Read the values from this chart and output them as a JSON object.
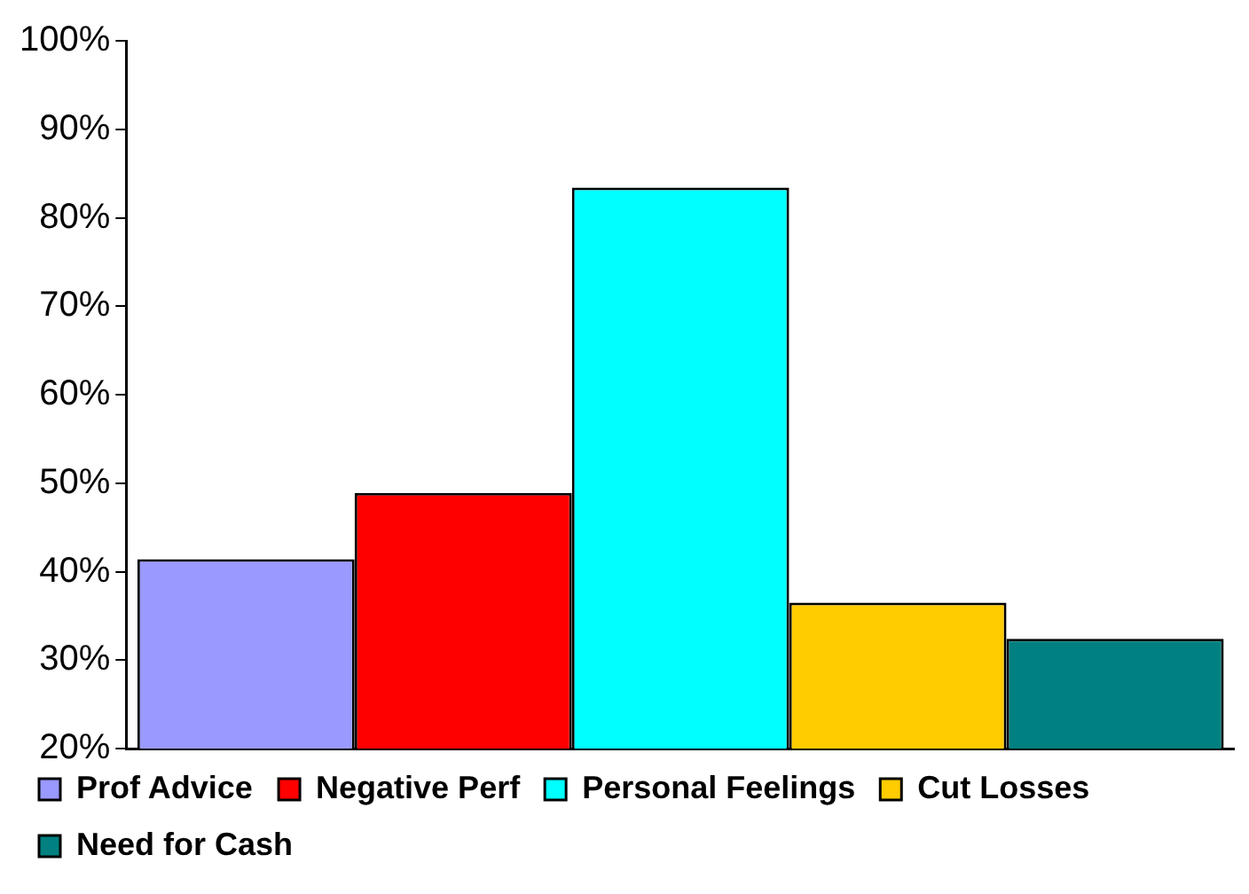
{
  "chart_data": {
    "type": "bar",
    "categories": [
      null
    ],
    "series": [
      {
        "name": "Prof Advice",
        "color": "#9999ff",
        "values": [
          41.4
        ]
      },
      {
        "name": "Negative Perf",
        "color": "#ff0000",
        "values": [
          48.9
        ]
      },
      {
        "name": "Personal Feelings",
        "color": "#00ffff",
        "values": [
          83.4
        ]
      },
      {
        "name": "Cut Losses",
        "color": "#ffcc00",
        "values": [
          36.5
        ]
      },
      {
        "name": "Need for Cash",
        "color": "#008080",
        "values": [
          32.4
        ]
      }
    ],
    "ylim": [
      20,
      100
    ],
    "yticks": [
      {
        "value": 20,
        "label": "20%"
      },
      {
        "value": 30,
        "label": "30%"
      },
      {
        "value": 40,
        "label": "40%"
      },
      {
        "value": 50,
        "label": "50%"
      },
      {
        "value": 60,
        "label": "60%"
      },
      {
        "value": 70,
        "label": "70%"
      },
      {
        "value": 80,
        "label": "80%"
      },
      {
        "value": 90,
        "label": "90%"
      },
      {
        "value": 100,
        "label": "100%"
      }
    ],
    "grid": false,
    "legend": "bottom",
    "tick_labels": "y"
  }
}
